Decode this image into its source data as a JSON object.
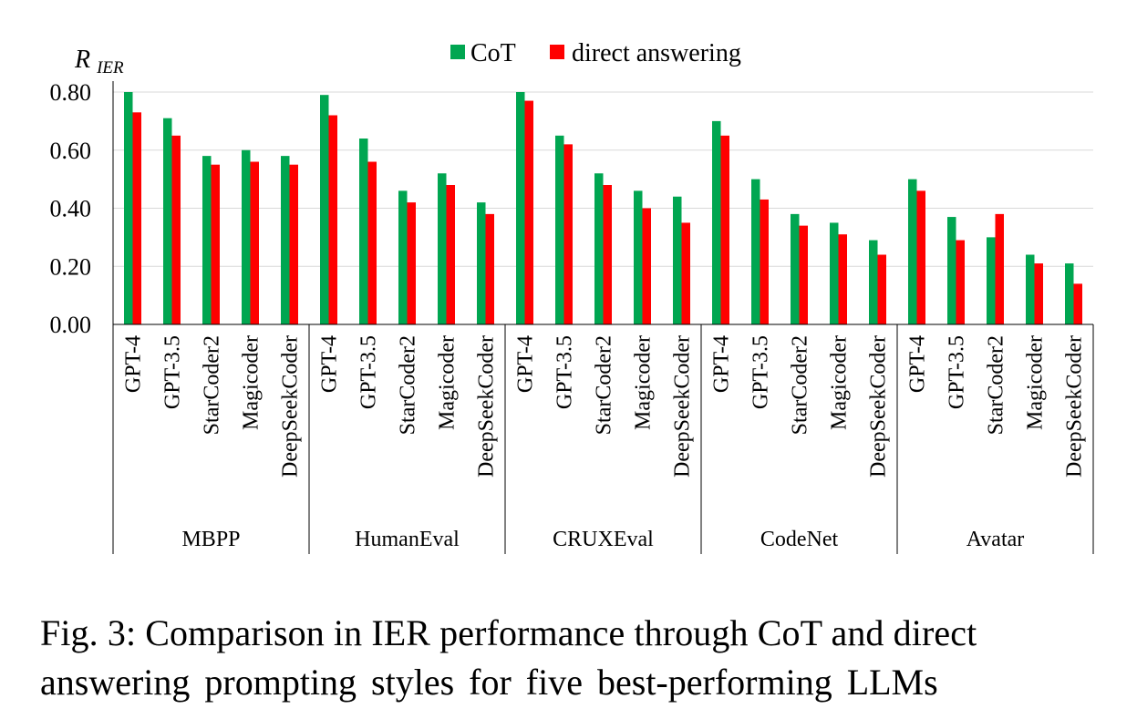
{
  "chart_data": {
    "type": "bar",
    "ylabel": "R",
    "ylabel_sub": "IER",
    "ylim": [
      0,
      0.8
    ],
    "y_ticks": [
      "0.00",
      "0.20",
      "0.40",
      "0.60",
      "0.80"
    ],
    "grid": true,
    "legend_position": "top",
    "groups": [
      {
        "name": "MBPP",
        "models": [
          "GPT-4",
          "GPT-3.5",
          "StarCoder2",
          "Magicoder",
          "DeepSeekCoder"
        ]
      },
      {
        "name": "HumanEval",
        "models": [
          "GPT-4",
          "GPT-3.5",
          "StarCoder2",
          "Magicoder",
          "DeepSeekCoder"
        ]
      },
      {
        "name": "CRUXEval",
        "models": [
          "GPT-4",
          "GPT-3.5",
          "StarCoder2",
          "Magicoder",
          "DeepSeekCoder"
        ]
      },
      {
        "name": "CodeNet",
        "models": [
          "GPT-4",
          "GPT-3.5",
          "StarCoder2",
          "Magicoder",
          "DeepSeekCoder"
        ]
      },
      {
        "name": "Avatar",
        "models": [
          "GPT-4",
          "GPT-3.5",
          "StarCoder2",
          "Magicoder",
          "DeepSeekCoder"
        ]
      }
    ],
    "series": [
      {
        "name": "CoT",
        "color": "#00a651",
        "values": [
          0.8,
          0.71,
          0.58,
          0.6,
          0.58,
          0.79,
          0.64,
          0.46,
          0.52,
          0.42,
          0.8,
          0.65,
          0.52,
          0.46,
          0.44,
          0.7,
          0.5,
          0.38,
          0.35,
          0.29,
          0.5,
          0.37,
          0.3,
          0.24,
          0.21
        ]
      },
      {
        "name": "direct answering",
        "color": "#ff0000",
        "values": [
          0.73,
          0.65,
          0.55,
          0.56,
          0.55,
          0.72,
          0.56,
          0.42,
          0.48,
          0.38,
          0.77,
          0.62,
          0.48,
          0.4,
          0.35,
          0.65,
          0.43,
          0.34,
          0.31,
          0.24,
          0.46,
          0.29,
          0.38,
          0.21,
          0.14
        ]
      }
    ]
  },
  "caption": {
    "line1": "Fig. 3: Comparison in IER performance through CoT and direct",
    "line2": "answering prompting styles for five best-performing LLMs"
  }
}
